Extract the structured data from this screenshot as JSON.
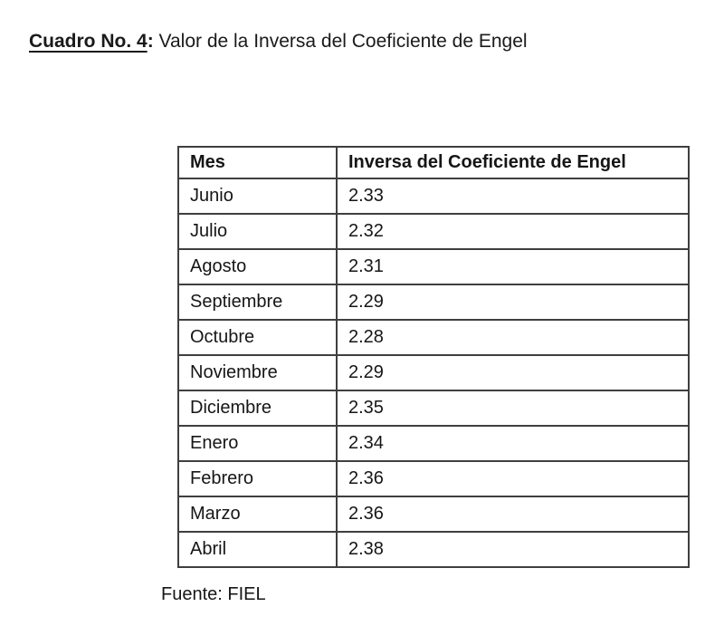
{
  "page": {
    "background": "#ffffff",
    "text_color": "#1a1a1a",
    "border_color": "#3f3f3f"
  },
  "caption": {
    "number_label": "Cuadro No. 4",
    "colon": ":",
    "rest": " Valor de la Inversa del Coeficiente de Engel"
  },
  "table": {
    "columns": [
      "Mes",
      "Inversa del Coeficiente de Engel"
    ],
    "rows": [
      {
        "mes": "Junio",
        "valor": "2.33"
      },
      {
        "mes": "Julio",
        "valor": "2.32"
      },
      {
        "mes": "Agosto",
        "valor": "2.31"
      },
      {
        "mes": "Septiembre",
        "valor": "2.29"
      },
      {
        "mes": "Octubre",
        "valor": "2.28"
      },
      {
        "mes": "Noviembre",
        "valor": "2.29"
      },
      {
        "mes": "Diciembre",
        "valor": "2.35"
      },
      {
        "mes": "Enero",
        "valor": "2.34"
      },
      {
        "mes": "Febrero",
        "valor": "2.36"
      },
      {
        "mes": "Marzo",
        "valor": "2.36"
      },
      {
        "mes": "Abril",
        "valor": "2.38"
      }
    ]
  },
  "source": {
    "label": "Fuente: FIEL"
  }
}
